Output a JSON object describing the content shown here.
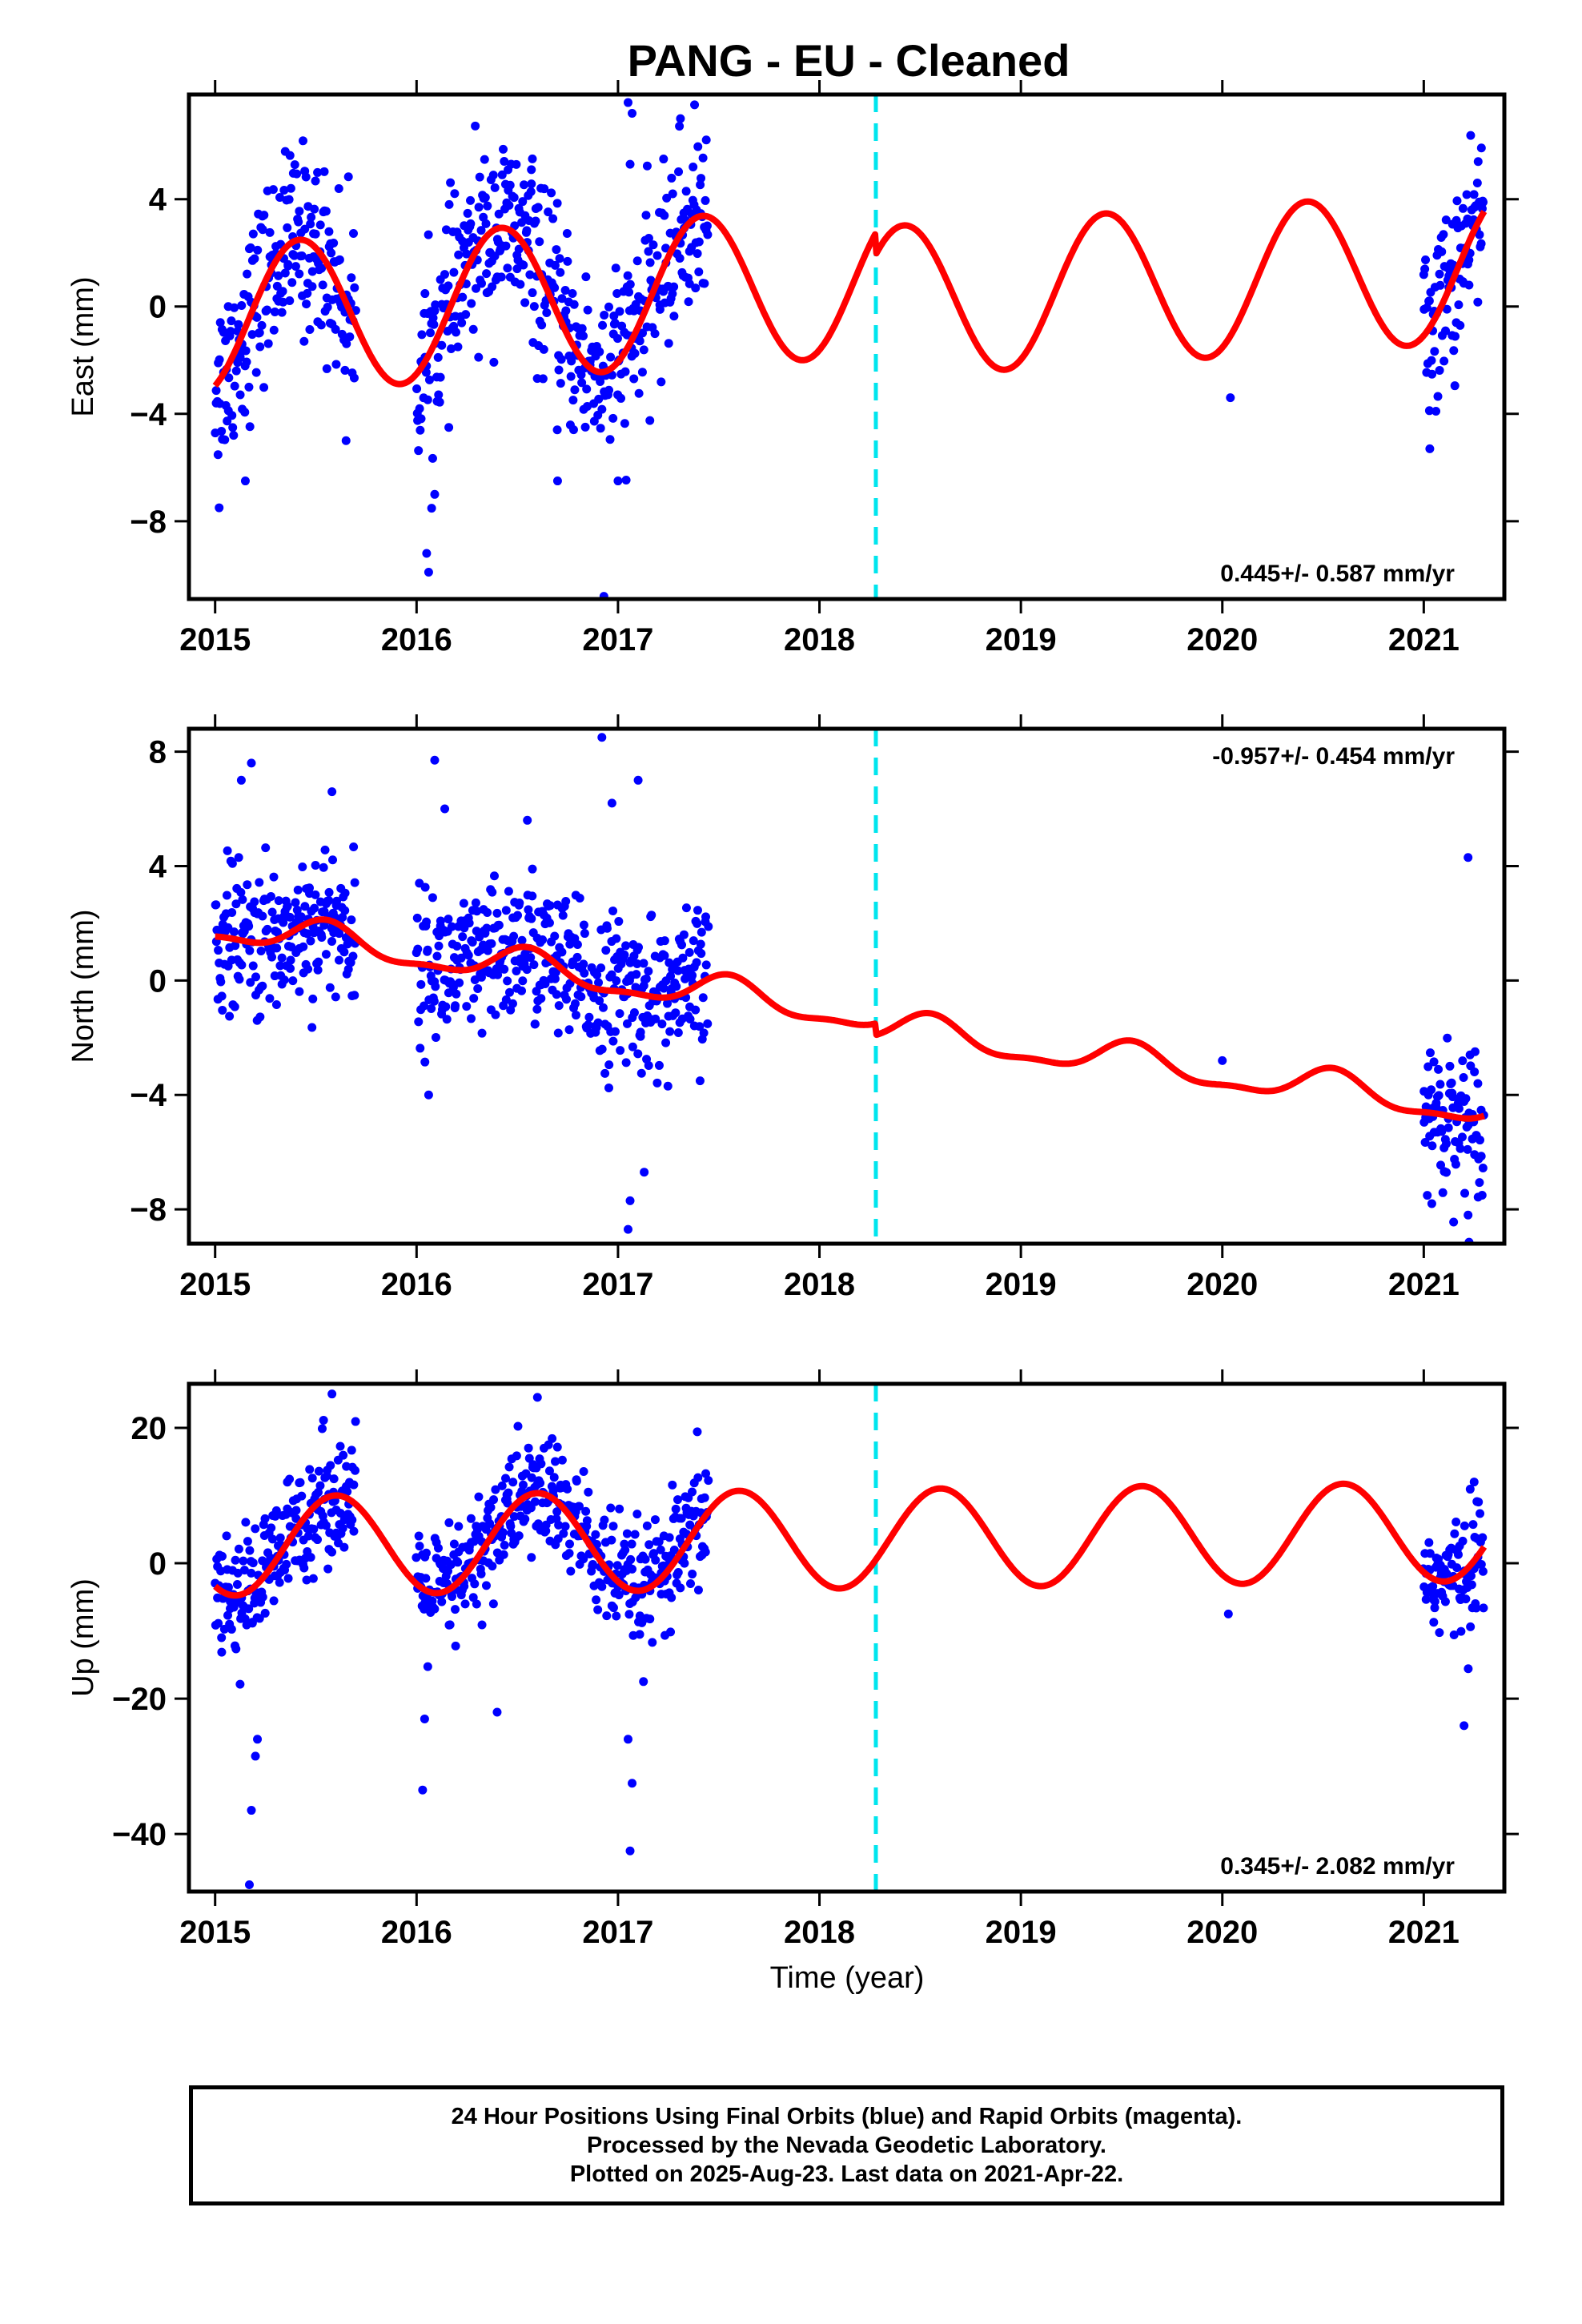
{
  "title": "PANG  - EU - Cleaned",
  "x_axis_label": "Time (year)",
  "colors": {
    "data_points": "#0000ff",
    "model_fit": "#ff0000",
    "event_line": "#00e5ee",
    "frame": "#000000"
  },
  "footer": {
    "line1": "24 Hour Positions Using Final Orbits (blue) and Rapid Orbits (magenta).",
    "line2": "Processed by the Nevada Geodetic Laboratory.",
    "line3": "Plotted on 2025-Aug-23. Last data on 2021-Apr-22."
  },
  "chart_data": [
    {
      "type": "scatter",
      "ylabel": "East (mm)",
      "rate_label": "0.445+/- 0.587 mm/yr",
      "rate_position": "bottom-right",
      "xlim": [
        2014.87,
        2021.4
      ],
      "ylim": [
        -10.9,
        7.9
      ],
      "x_ticks": [
        2015,
        2016,
        2017,
        2018,
        2019,
        2020,
        2021
      ],
      "y_ticks": [
        4,
        0,
        -4,
        -8
      ],
      "y_tick_labels": [
        "4",
        "0",
        "−4",
        "−8"
      ],
      "event_line_x": 2018.28,
      "data_segments": [
        [
          2015.0,
          2015.7
        ],
        [
          2016.0,
          2017.45
        ],
        [
          2020.0,
          2020.0
        ],
        [
          2021.0,
          2021.3
        ]
      ],
      "model": {
        "segments": [
          {
            "start": 2015.0,
            "end": 2018.28,
            "offset": -0.5,
            "annual_amp": 2.8,
            "annual_peak": 2015.42,
            "noise": 1.7
          },
          {
            "start": 2018.28,
            "end": 2021.3,
            "offset": -1.3,
            "annual_amp": 2.8,
            "annual_peak": 2015.42,
            "noise": 1.7
          }
        ],
        "rate": 0.445
      },
      "outliers": [
        {
          "x": 2016.05,
          "y": -9.2
        },
        {
          "x": 2016.06,
          "y": -9.9
        },
        {
          "x": 2016.09,
          "y": -7.0
        },
        {
          "x": 2016.93,
          "y": -10.8
        },
        {
          "x": 2017.05,
          "y": 7.6
        },
        {
          "x": 2017.07,
          "y": 7.2
        },
        {
          "x": 2017.31,
          "y": 7.0
        },
        {
          "x": 2017.06,
          "y": 5.3
        },
        {
          "x": 2015.15,
          "y": -6.5
        },
        {
          "x": 2015.02,
          "y": -7.5
        },
        {
          "x": 2015.65,
          "y": -5.0
        },
        {
          "x": 2016.7,
          "y": -6.5
        },
        {
          "x": 2017.0,
          "y": -6.5
        },
        {
          "x": 2021.03,
          "y": -5.3
        },
        {
          "x": 2020.04,
          "y": -3.4
        },
        {
          "x": 2021.27,
          "y": 5.4
        },
        {
          "x": 2016.57,
          "y": 5.1
        }
      ]
    },
    {
      "type": "scatter",
      "ylabel": "North (mm)",
      "rate_label": "-0.957+/- 0.454 mm/yr",
      "rate_position": "top-right",
      "xlim": [
        2014.87,
        2021.4
      ],
      "ylim": [
        -9.2,
        8.8
      ],
      "x_ticks": [
        2015,
        2016,
        2017,
        2018,
        2019,
        2020,
        2021
      ],
      "y_ticks": [
        8,
        4,
        0,
        -4,
        -8
      ],
      "y_tick_labels": [
        "8",
        "4",
        "0",
        "−4",
        "−8"
      ],
      "event_line_x": 2018.28,
      "data_segments": [
        [
          2015.0,
          2015.7
        ],
        [
          2016.0,
          2017.45
        ],
        [
          2020.0,
          2020.0
        ],
        [
          2021.0,
          2021.3
        ]
      ],
      "model": {
        "segments": [
          {
            "start": 2015.0,
            "end": 2018.28,
            "offset": 1.9,
            "annual_amp": 0.55,
            "annual_peak": 2015.55,
            "semi_amp": 0.2,
            "noise": 1.3
          },
          {
            "start": 2018.28,
            "end": 2021.3,
            "offset": 1.5,
            "annual_amp": 0.55,
            "annual_peak": 2015.55,
            "semi_amp": 0.2,
            "noise": 1.3
          }
        ],
        "rate": -0.957
      },
      "outliers": [
        {
          "x": 2015.18,
          "y": 7.6
        },
        {
          "x": 2015.13,
          "y": 7.0
        },
        {
          "x": 2015.58,
          "y": 6.6
        },
        {
          "x": 2016.09,
          "y": 7.7
        },
        {
          "x": 2016.14,
          "y": 6.0
        },
        {
          "x": 2016.92,
          "y": 8.5
        },
        {
          "x": 2016.97,
          "y": 6.2
        },
        {
          "x": 2017.1,
          "y": 7.0
        },
        {
          "x": 2017.06,
          "y": -7.7
        },
        {
          "x": 2017.13,
          "y": -6.7
        },
        {
          "x": 2017.05,
          "y": -8.7
        },
        {
          "x": 2016.06,
          "y": -4.0
        },
        {
          "x": 2020.0,
          "y": -2.8
        },
        {
          "x": 2021.22,
          "y": 4.3
        },
        {
          "x": 2021.04,
          "y": -7.8
        },
        {
          "x": 2021.22,
          "y": -8.2
        },
        {
          "x": 2016.55,
          "y": 5.6
        }
      ]
    },
    {
      "type": "scatter",
      "ylabel": "Up (mm)",
      "rate_label": "0.345+/- 2.082 mm/yr",
      "rate_position": "bottom-right",
      "xlim": [
        2014.87,
        2021.4
      ],
      "ylim": [
        -48.5,
        26.5
      ],
      "x_ticks": [
        2015,
        2016,
        2017,
        2018,
        2019,
        2020,
        2021
      ],
      "y_ticks": [
        20,
        0,
        -20,
        -40
      ],
      "y_tick_labels": [
        "20",
        "0",
        "−20",
        "−40"
      ],
      "event_line_x": 2018.28,
      "data_segments": [
        [
          2015.0,
          2015.7
        ],
        [
          2016.0,
          2017.45
        ],
        [
          2020.0,
          2020.0
        ],
        [
          2021.0,
          2021.3
        ]
      ],
      "model": {
        "segments": [
          {
            "start": 2015.0,
            "end": 2021.3,
            "offset": 2.5,
            "annual_amp": 7.3,
            "annual_peak": 2015.6,
            "noise": 4.5
          }
        ],
        "rate": 0.345
      },
      "outliers": [
        {
          "x": 2015.17,
          "y": -47.5
        },
        {
          "x": 2015.18,
          "y": -36.5
        },
        {
          "x": 2015.2,
          "y": -28.5
        },
        {
          "x": 2015.21,
          "y": -26.0
        },
        {
          "x": 2016.03,
          "y": -33.5
        },
        {
          "x": 2016.04,
          "y": -23.0
        },
        {
          "x": 2016.4,
          "y": -22.0
        },
        {
          "x": 2017.06,
          "y": -42.5
        },
        {
          "x": 2017.07,
          "y": -32.5
        },
        {
          "x": 2017.05,
          "y": -26.0
        },
        {
          "x": 2015.58,
          "y": 25.0
        },
        {
          "x": 2016.6,
          "y": 24.5
        },
        {
          "x": 2020.03,
          "y": -7.5
        },
        {
          "x": 2021.2,
          "y": -24.0
        },
        {
          "x": 2021.25,
          "y": 12.0
        }
      ]
    }
  ]
}
